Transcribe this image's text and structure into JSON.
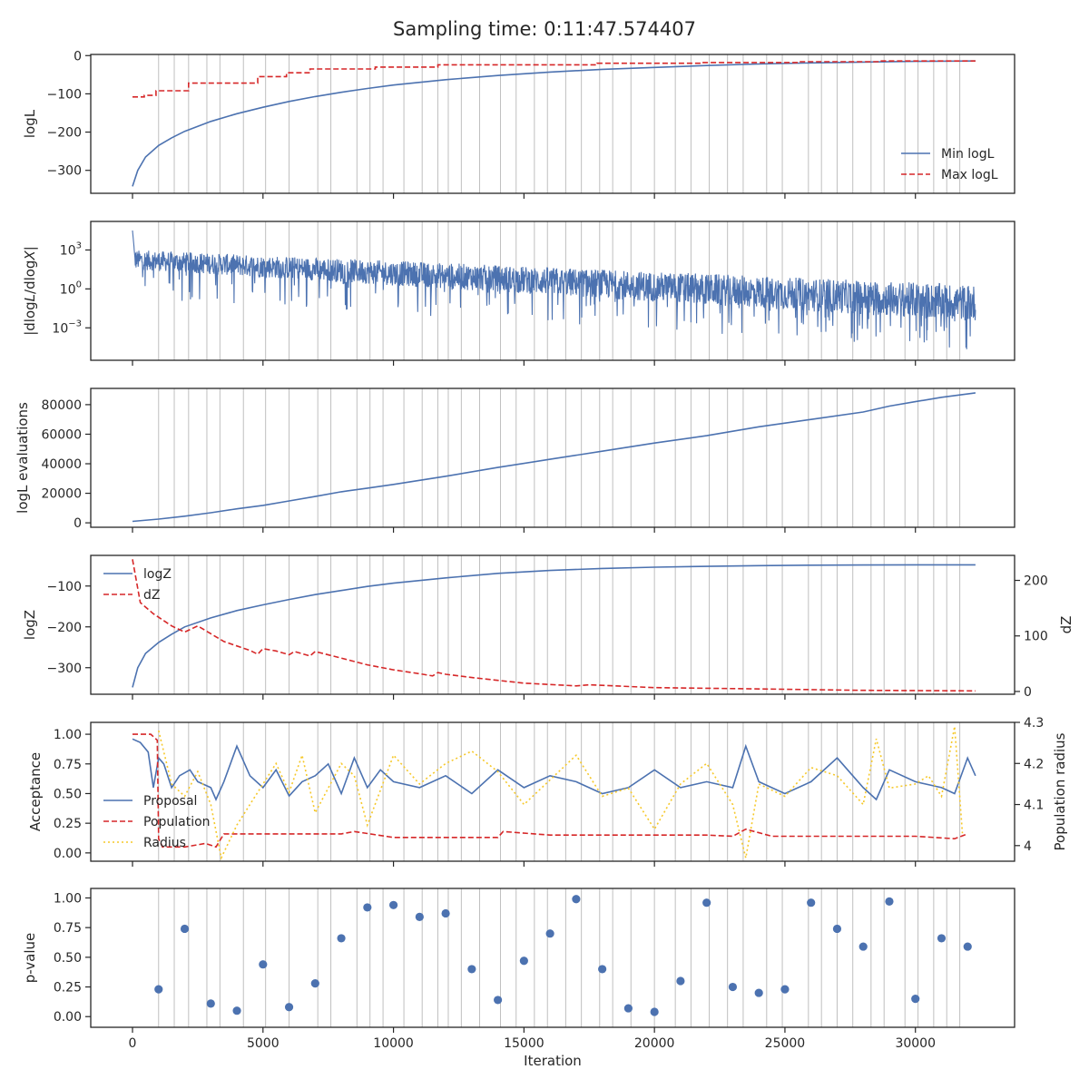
{
  "figure": {
    "title": "Sampling time: 0:11:47.574407",
    "xlabel": "Iteration",
    "xticks": [
      0,
      5000,
      10000,
      15000,
      20000,
      25000,
      30000
    ],
    "xlim": [
      -1600,
      33800
    ],
    "vlines": [
      1000,
      1600,
      2150,
      2850,
      3350,
      4250,
      5100,
      6000,
      7100,
      7600,
      8600,
      9100,
      9600,
      10400,
      11100,
      11700,
      12100,
      12600,
      13300,
      14100,
      14700,
      15400,
      15900,
      16600,
      17200,
      17900,
      18400,
      19100,
      20000,
      20800,
      21400,
      22100,
      22800,
      23400,
      24300,
      24900,
      25900,
      26400,
      27000,
      27600,
      28300,
      28800,
      29600,
      30100,
      30700,
      31200,
      31700
    ]
  },
  "colors": {
    "blue": "#4c72b0",
    "red": "#d62728",
    "yellow": "#f6c829",
    "grid": "#bfbfbf",
    "axis": "#262626"
  },
  "chart_data": [
    {
      "type": "line",
      "ylabel": "logL",
      "ylim": [
        -360,
        3
      ],
      "yticks": [
        0,
        -100,
        -200,
        -300
      ],
      "legend": "bottom-right",
      "series": [
        {
          "name": "Min logL",
          "style": "solid",
          "color": "#4c72b0",
          "x": [
            0,
            200,
            500,
            1000,
            1500,
            2000,
            3000,
            4000,
            5000,
            6000,
            7000,
            8000,
            9000,
            10000,
            12000,
            14000,
            16000,
            18000,
            20000,
            22000,
            24000,
            26000,
            28000,
            30000,
            32300
          ],
          "y": [
            -342,
            -300,
            -265,
            -235,
            -215,
            -198,
            -172,
            -152,
            -135,
            -120,
            -107,
            -96,
            -86,
            -77,
            -63,
            -52,
            -43,
            -36,
            -31,
            -26,
            -22,
            -19,
            -17,
            -15,
            -14
          ]
        },
        {
          "name": "Max logL",
          "style": "dashed",
          "color": "#d62728",
          "x": [
            0,
            450,
            450,
            900,
            900,
            2150,
            2150,
            4800,
            4800,
            5900,
            5900,
            6800,
            6800,
            9300,
            9300,
            11700,
            11700,
            17800,
            17800,
            21800,
            21800,
            25500,
            25500,
            28600,
            28600,
            32300
          ],
          "y": [
            -108,
            -108,
            -104,
            -104,
            -92,
            -92,
            -72,
            -72,
            -55,
            -55,
            -45,
            -45,
            -35,
            -35,
            -30,
            -30,
            -24,
            -24,
            -20,
            -20,
            -18,
            -18,
            -16,
            -16,
            -14,
            -14
          ]
        }
      ]
    },
    {
      "type": "line",
      "ylabel": "|dlogL/dlogX|",
      "yscale": "log",
      "ylim": [
        -5.5,
        5.2
      ],
      "yticks": [
        {
          "pow": "3",
          "v": 3
        },
        {
          "pow": "0",
          "v": 0
        },
        {
          "pow": "−3",
          "v": -3
        }
      ],
      "series": [
        {
          "name": "",
          "style": "noisy",
          "color": "#4c72b0",
          "x": [
            0,
            32300
          ],
          "upper": [
            3.0,
            0.3
          ],
          "lower": [
            1.5,
            -2.5
          ]
        }
      ]
    },
    {
      "type": "line",
      "ylabel": "logL evaluations",
      "ylim": [
        -3000,
        91000
      ],
      "yticks": [
        0,
        20000,
        40000,
        60000,
        80000
      ],
      "series": [
        {
          "name": "",
          "style": "solid",
          "color": "#4c72b0",
          "x": [
            0,
            1000,
            2000,
            3000,
            4000,
            5000,
            6000,
            7000,
            8000,
            9000,
            10000,
            12000,
            14000,
            16000,
            18000,
            20000,
            22000,
            24000,
            26000,
            28000,
            29000,
            30000,
            31000,
            32300
          ],
          "y": [
            1000,
            2500,
            4500,
            6800,
            9500,
            11800,
            14800,
            17800,
            21000,
            23500,
            26000,
            31500,
            37500,
            43000,
            48500,
            54000,
            59000,
            65000,
            70000,
            75000,
            79000,
            82000,
            85000,
            88000
          ]
        }
      ]
    },
    {
      "type": "line",
      "ylabel": "logZ",
      "ylabel_right": "dZ",
      "ylim": [
        -365,
        -25
      ],
      "ylim_right": [
        -5,
        245
      ],
      "yticks": [
        -100,
        -200,
        -300
      ],
      "yticks_right": [
        200,
        100,
        0
      ],
      "legend": "top-left",
      "series": [
        {
          "name": "logZ",
          "style": "solid",
          "color": "#4c72b0",
          "axis": "left",
          "x": [
            0,
            200,
            500,
            1000,
            1500,
            2000,
            3000,
            4000,
            5000,
            6000,
            7000,
            8000,
            9000,
            10000,
            12000,
            14000,
            16000,
            18000,
            20000,
            22000,
            24000,
            26000,
            28000,
            30000,
            32300
          ],
          "y": [
            -348,
            -300,
            -265,
            -238,
            -218,
            -200,
            -178,
            -160,
            -146,
            -133,
            -121,
            -111,
            -101,
            -93,
            -80,
            -69,
            -62,
            -57,
            -54,
            -52,
            -50,
            -49,
            -48.5,
            -48,
            -48
          ]
        },
        {
          "name": "dZ",
          "style": "dashed",
          "color": "#d62728",
          "axis": "right",
          "x": [
            0,
            300,
            800,
            1500,
            2000,
            2500,
            3500,
            4500,
            4800,
            5000,
            5500,
            6000,
            6200,
            6800,
            7000,
            8000,
            9000,
            10000,
            11000,
            11500,
            11700,
            12000,
            13000,
            15000,
            17000,
            17500,
            20000,
            25000,
            28000,
            32300
          ],
          "y": [
            238,
            160,
            140,
            118,
            107,
            118,
            90,
            74,
            67,
            77,
            73,
            66,
            72,
            64,
            72,
            60,
            48,
            39,
            32,
            28,
            34,
            31,
            25,
            15,
            10,
            12,
            7,
            4,
            2,
            1
          ]
        }
      ]
    },
    {
      "type": "line",
      "ylabel": "Acceptance",
      "ylabel_right": "Population radius",
      "ylim": [
        -0.07,
        1.1
      ],
      "ylim_right": [
        3.962,
        4.3
      ],
      "yticks": [
        0.0,
        0.25,
        0.5,
        0.75,
        1.0
      ],
      "yticks_right": [
        4.3,
        4.2,
        4.1,
        4.0
      ],
      "ytick_labels": [
        "0.00",
        "0.25",
        "0.50",
        "0.75",
        "1.00"
      ],
      "legend": "bottom-left",
      "series": [
        {
          "name": "Proposal",
          "style": "solid",
          "color": "#4c72b0",
          "axis": "left",
          "x": [
            0,
            300,
            600,
            800,
            1000,
            1200,
            1500,
            1800,
            2200,
            2500,
            3000,
            3200,
            3500,
            4000,
            4500,
            5000,
            5500,
            6000,
            6500,
            7000,
            7500,
            8000,
            8500,
            9000,
            9500,
            10000,
            11000,
            12000,
            13000,
            14000,
            15000,
            16000,
            17000,
            18000,
            19000,
            20000,
            21000,
            22000,
            23000,
            23500,
            24000,
            25000,
            26000,
            27000,
            28000,
            28500,
            29000,
            30000,
            31000,
            31500,
            32000,
            32300
          ],
          "y": [
            0.96,
            0.93,
            0.85,
            0.55,
            0.8,
            0.75,
            0.55,
            0.65,
            0.7,
            0.6,
            0.55,
            0.45,
            0.6,
            0.9,
            0.65,
            0.55,
            0.7,
            0.48,
            0.6,
            0.65,
            0.75,
            0.5,
            0.8,
            0.55,
            0.7,
            0.6,
            0.55,
            0.65,
            0.5,
            0.7,
            0.55,
            0.65,
            0.6,
            0.5,
            0.55,
            0.7,
            0.55,
            0.6,
            0.55,
            0.9,
            0.6,
            0.5,
            0.6,
            0.8,
            0.55,
            0.45,
            0.7,
            0.6,
            0.55,
            0.5,
            0.8,
            0.65
          ]
        },
        {
          "name": "Population",
          "style": "dashed",
          "color": "#d62728",
          "axis": "left",
          "x": [
            0,
            700,
            950,
            1000,
            1150,
            2000,
            2800,
            3200,
            3500,
            4000,
            6000,
            8000,
            8500,
            10000,
            12000,
            14000,
            14200,
            16000,
            18000,
            20000,
            22000,
            23000,
            23500,
            24500,
            25000,
            26000,
            28000,
            30000,
            31500,
            32000
          ],
          "y": [
            1.0,
            1.0,
            0.95,
            0.12,
            0.05,
            0.05,
            0.08,
            0.05,
            0.16,
            0.16,
            0.16,
            0.16,
            0.18,
            0.13,
            0.13,
            0.13,
            0.18,
            0.15,
            0.15,
            0.15,
            0.15,
            0.14,
            0.2,
            0.14,
            0.14,
            0.14,
            0.14,
            0.14,
            0.12,
            0.16
          ]
        },
        {
          "name": "Radius",
          "style": "dotted",
          "color": "#f6c829",
          "axis": "right",
          "x": [
            1000,
            1500,
            2000,
            2500,
            3000,
            3400,
            4000,
            5000,
            5500,
            6000,
            6500,
            7000,
            8000,
            8500,
            9000,
            10000,
            11000,
            12000,
            13000,
            14000,
            15000,
            16000,
            17000,
            18000,
            19000,
            20000,
            21000,
            22000,
            23000,
            23500,
            24000,
            25000,
            26000,
            27000,
            28000,
            28500,
            29000,
            30000,
            30500,
            31000,
            31500,
            31800
          ],
          "y": [
            4.28,
            4.15,
            4.12,
            4.18,
            4.1,
            3.97,
            4.05,
            4.15,
            4.2,
            4.13,
            4.22,
            4.08,
            4.2,
            4.17,
            4.05,
            4.22,
            4.15,
            4.2,
            4.23,
            4.18,
            4.1,
            4.16,
            4.22,
            4.12,
            4.14,
            4.04,
            4.15,
            4.2,
            4.1,
            3.97,
            4.15,
            4.12,
            4.19,
            4.17,
            4.1,
            4.26,
            4.14,
            4.15,
            4.17,
            4.12,
            4.29,
            4.03
          ]
        }
      ]
    },
    {
      "type": "scatter",
      "ylabel": "p-value",
      "ylim": [
        -0.09,
        1.08
      ],
      "yticks": [
        0.0,
        0.25,
        0.5,
        0.75,
        1.0
      ],
      "ytick_labels": [
        "0.00",
        "0.25",
        "0.50",
        "0.75",
        "1.00"
      ],
      "series": [
        {
          "name": "",
          "color": "#4c72b0",
          "x": [
            1000,
            2000,
            3000,
            4000,
            5000,
            6000,
            7000,
            8000,
            9000,
            10000,
            11000,
            12000,
            13000,
            14000,
            15000,
            16000,
            17000,
            18000,
            19000,
            20000,
            21000,
            22000,
            23000,
            24000,
            25000,
            26000,
            27000,
            28000,
            29000,
            30000,
            31000,
            32000
          ],
          "y": [
            0.23,
            0.74,
            0.11,
            0.05,
            0.44,
            0.08,
            0.28,
            0.66,
            0.92,
            0.94,
            0.84,
            0.87,
            0.4,
            0.14,
            0.47,
            0.7,
            0.99,
            0.4,
            0.07,
            0.04,
            0.3,
            0.96,
            0.25,
            0.2,
            0.23,
            0.96,
            0.74,
            0.59,
            0.97,
            0.15,
            0.66,
            0.59
          ]
        }
      ]
    }
  ]
}
